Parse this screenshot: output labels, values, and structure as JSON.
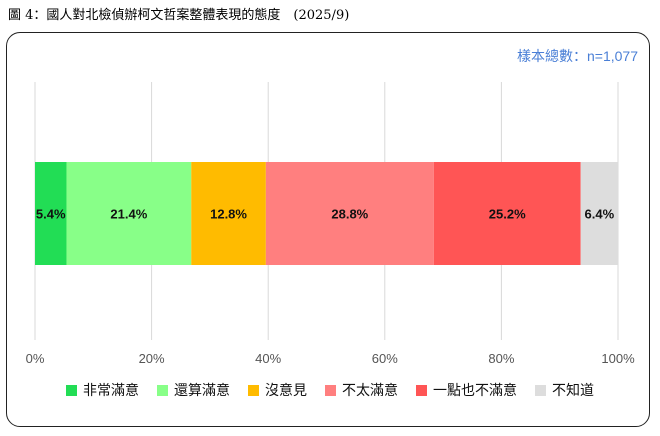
{
  "title": "圖 4：國人對北檢偵辦柯文哲案整體表現的態度　(2025/9)",
  "sample_note": "樣本總數：n=1,077",
  "chart_data": {
    "type": "bar",
    "orientation": "horizontal-stacked-100",
    "categories": [
      ""
    ],
    "series": [
      {
        "name": "非常滿意",
        "values": [
          5.4
        ],
        "label": "5.4%",
        "color": "#22dd55"
      },
      {
        "name": "還算滿意",
        "values": [
          21.4
        ],
        "label": "21.4%",
        "color": "#88ff88"
      },
      {
        "name": "沒意見",
        "values": [
          12.8
        ],
        "label": "12.8%",
        "color": "#ffbb00"
      },
      {
        "name": "不太滿意",
        "values": [
          28.8
        ],
        "label": "28.8%",
        "color": "#ff7f7f"
      },
      {
        "name": "一點也不滿意",
        "values": [
          25.2
        ],
        "label": "25.2%",
        "color": "#ff5555"
      },
      {
        "name": "不知道",
        "values": [
          6.4
        ],
        "label": "6.4%",
        "color": "#dddddd"
      }
    ],
    "xlim": [
      0,
      100
    ],
    "xticks": [
      0,
      20,
      40,
      60,
      80,
      100
    ],
    "xtick_labels": [
      "0%",
      "20%",
      "40%",
      "60%",
      "80%",
      "100%"
    ],
    "grid": true,
    "legend": "bottom"
  }
}
